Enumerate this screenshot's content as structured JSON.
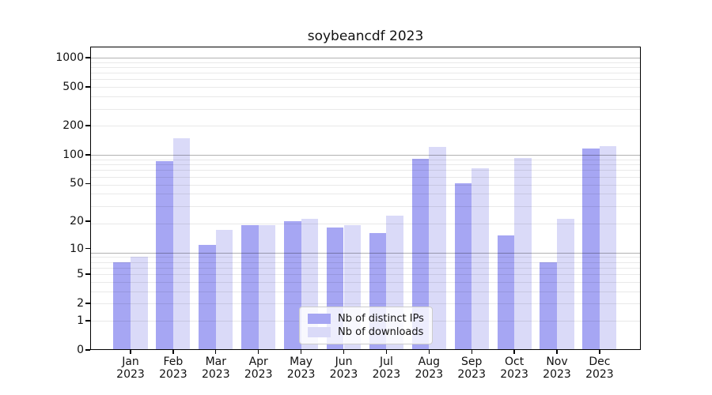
{
  "chart_data": {
    "type": "bar",
    "title": "soybeancdf 2023",
    "categories": [
      "Jan",
      "Feb",
      "Mar",
      "Apr",
      "May",
      "Jun",
      "Jul",
      "Aug",
      "Sep",
      "Oct",
      "Nov",
      "Dec"
    ],
    "x_year_label": "2023",
    "series": [
      {
        "name": "Nb of distinct IPs",
        "color": "#a6a6f3",
        "values": [
          7,
          85,
          11,
          18,
          20,
          17,
          15,
          91,
          50,
          14,
          7,
          116
        ]
      },
      {
        "name": "Nb of downloads",
        "color": "#dadaf8",
        "values": [
          8,
          148,
          16,
          18,
          21,
          18,
          23,
          120,
          73,
          92,
          21,
          122
        ]
      }
    ],
    "yticks": [
      0,
      1,
      2,
      5,
      10,
      20,
      50,
      100,
      200,
      500,
      1000
    ],
    "yscale": "log1p",
    "ylim": [
      0,
      1400
    ],
    "grid": true,
    "grid_major_color": "#b3b3b3",
    "grid_minor_color": "#e8e8e8",
    "legend_position": "lower center",
    "xlabel": "",
    "ylabel": ""
  }
}
